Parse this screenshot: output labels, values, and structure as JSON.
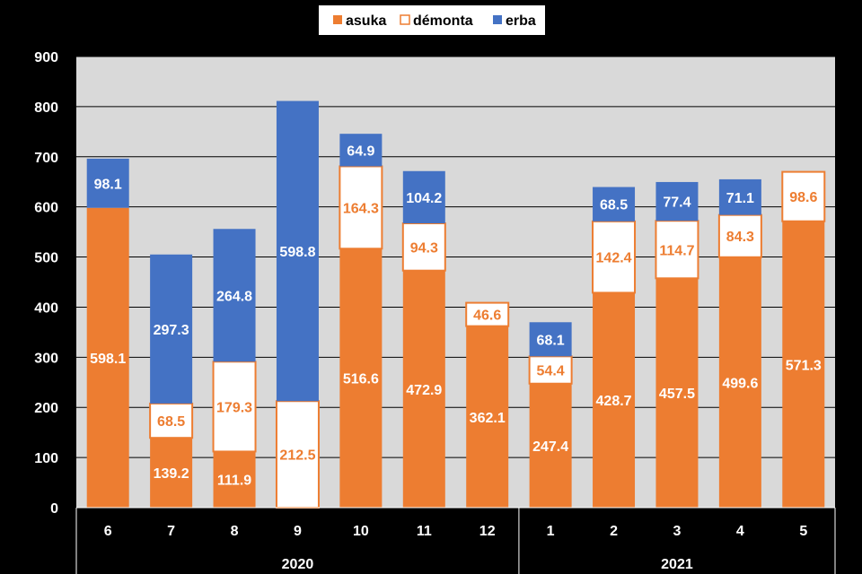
{
  "chart_data": {
    "type": "bar",
    "stacked": true,
    "legend": {
      "position": "top",
      "entries": [
        "asuka",
        "démonta",
        "erba"
      ]
    },
    "categories": [
      "6",
      "7",
      "8",
      "9",
      "10",
      "11",
      "12",
      "1",
      "2",
      "3",
      "4",
      "5"
    ],
    "groups": [
      {
        "label": "2020",
        "categories": [
          "6",
          "7",
          "8",
          "9",
          "10",
          "11",
          "12"
        ]
      },
      {
        "label": "2021",
        "categories": [
          "1",
          "2",
          "3",
          "4",
          "5"
        ]
      }
    ],
    "series": [
      {
        "name": "asuka",
        "color": "#ED7D31",
        "values": [
          598.1,
          139.2,
          111.9,
          0,
          516.6,
          472.9,
          362.1,
          247.4,
          428.7,
          457.5,
          499.6,
          571.3
        ]
      },
      {
        "name": "démonta",
        "color": "#FFFFFF",
        "border_color": "#ED7D31",
        "values": [
          0,
          68.5,
          179.3,
          212.5,
          164.3,
          94.3,
          46.6,
          54.4,
          142.4,
          114.7,
          84.3,
          98.6
        ]
      },
      {
        "name": "erba",
        "color": "#4472C4",
        "values": [
          98.1,
          297.3,
          264.8,
          598.8,
          64.9,
          104.2,
          0,
          68.1,
          68.5,
          77.4,
          71.1,
          0
        ]
      }
    ],
    "ylim": [
      0,
      900
    ],
    "yticks": [
      0,
      100,
      200,
      300,
      400,
      500,
      600,
      700,
      800,
      900
    ],
    "grid": true,
    "plot_background": "#D9D9D9",
    "page_background": "#000000"
  }
}
